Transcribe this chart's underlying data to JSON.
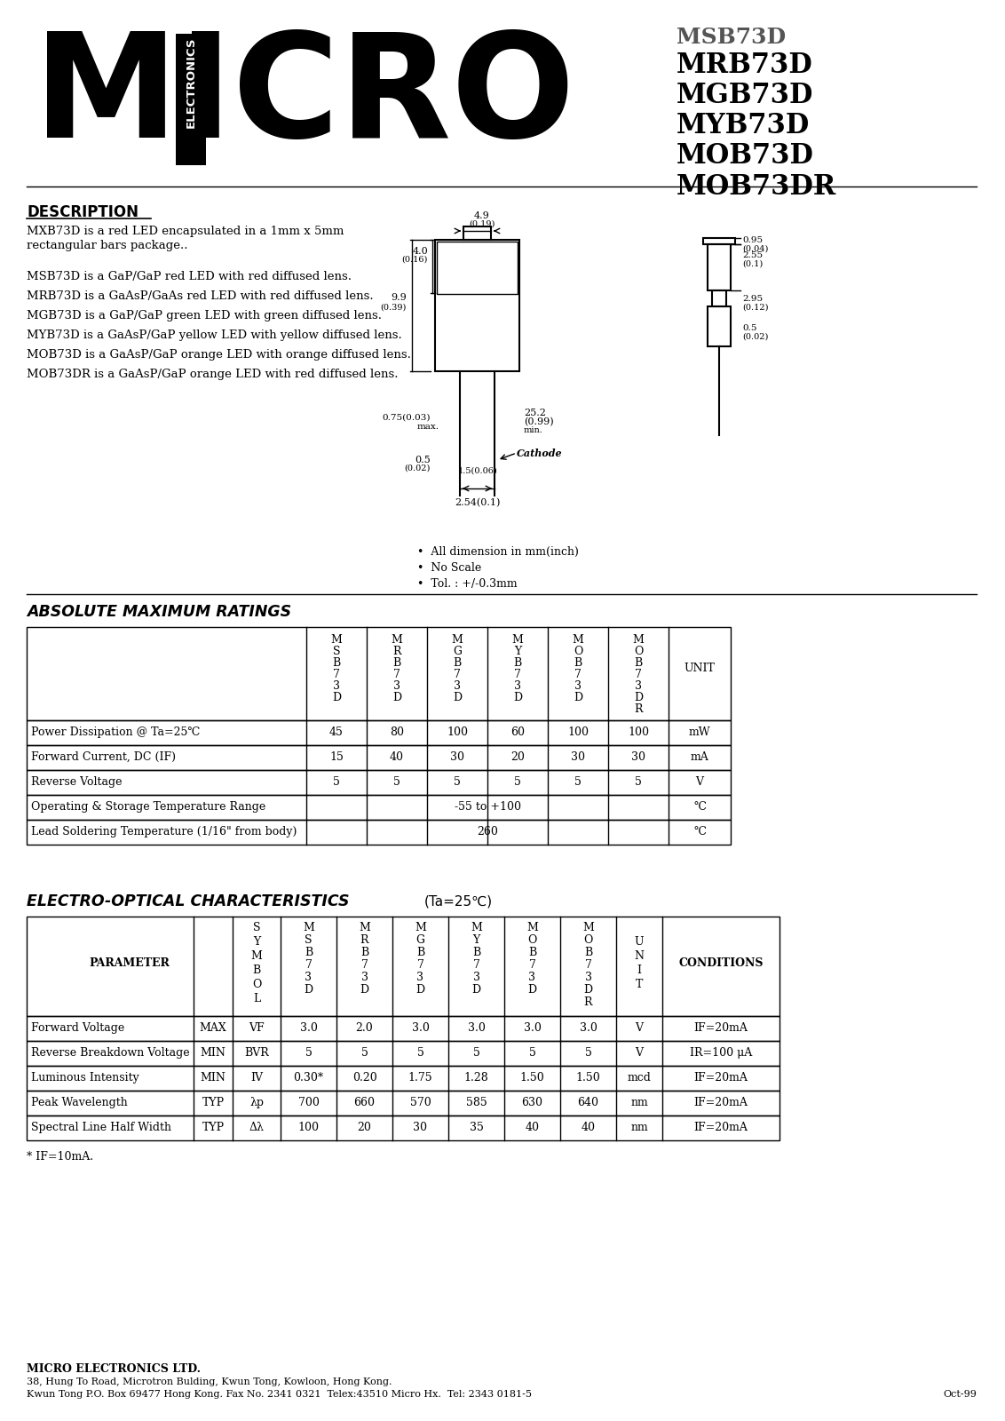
{
  "bg_color": "#ffffff",
  "header": {
    "micro_text": "MICRO",
    "electronics_text": "ELECTRONICS",
    "part_numbers": [
      "MSB73D",
      "MRB73D",
      "MGB73D",
      "MYB73D",
      "MOB73D",
      "MOB73DR"
    ]
  },
  "description": {
    "title": "DESCRIPTION",
    "lines": [
      "MXB73D is a red LED encapsulated in a 1mm x 5mm",
      "rectangular bars package..",
      "",
      "MSB73D is a GaP/GaP red LED with red diffused lens.",
      "MRB73D is a GaAsP/GaAs red LED with red diffused lens.",
      "MGB73D is a GaP/GaP green LED with green diffused lens.",
      "MYB73D is a GaAsP/GaP yellow LED with yellow diffused lens.",
      "MOB73D is a GaAsP/GaP orange LED with orange diffused lens.",
      "MOB73DR is a GaAsP/GaP orange LED with red diffused lens."
    ]
  },
  "abs_max_title": "ABSOLUTE MAXIMUM RATINGS",
  "abs_max_rows": [
    [
      "Power Dissipation @ Ta=25℃",
      "45",
      "80",
      "100",
      "60",
      "100",
      "100",
      "mW"
    ],
    [
      "Forward Current, DC (IF)",
      "15",
      "40",
      "30",
      "20",
      "30",
      "30",
      "mA"
    ],
    [
      "Reverse Voltage",
      "5",
      "5",
      "5",
      "5",
      "5",
      "5",
      "V"
    ],
    [
      "Operating & Storage Temperature Range",
      "-55 to +100",
      "",
      "",
      "",
      "",
      "",
      "℃"
    ],
    [
      "Lead Soldering Temperature (1/16\" from body)",
      "260",
      "",
      "",
      "",
      "",
      "",
      "℃"
    ]
  ],
  "eo_title": "ELECTRO-OPTICAL CHARACTERISTICS",
  "eo_subtitle": "(Ta=25℃)",
  "eo_rows": [
    [
      "Forward Voltage",
      "MAX",
      "VF",
      "3.0",
      "2.0",
      "3.0",
      "3.0",
      "3.0",
      "3.0",
      "V",
      "IF=20mA"
    ],
    [
      "Reverse Breakdown Voltage",
      "MIN",
      "BVR",
      "5",
      "5",
      "5",
      "5",
      "5",
      "5",
      "V",
      "IR=100 μA"
    ],
    [
      "Luminous Intensity",
      "MIN",
      "IV",
      "0.30*",
      "0.20",
      "1.75",
      "1.28",
      "1.50",
      "1.50",
      "mcd",
      "IF=20mA"
    ],
    [
      "Peak Wavelength",
      "TYP",
      "λp",
      "700",
      "660",
      "570",
      "585",
      "630",
      "640",
      "nm",
      "IF=20mA"
    ],
    [
      "Spectral Line Half Width",
      "TYP",
      "Δλ",
      "100",
      "20",
      "30",
      "35",
      "40",
      "40",
      "nm",
      "IF=20mA"
    ]
  ],
  "footnote": "* IF=10mA.",
  "company": "MICRO ELECTRONICS LTD.",
  "address1": "38, Hung To Road, Microtron Bulding, Kwun Tong, Kowloon, Hong Kong.",
  "address2": "Kwun Tong P.O. Box 69477 Hong Kong. Fax No. 2341 0321  Telex:43510 Micro Hx.  Tel: 2343 0181-5",
  "date": "Oct-99"
}
